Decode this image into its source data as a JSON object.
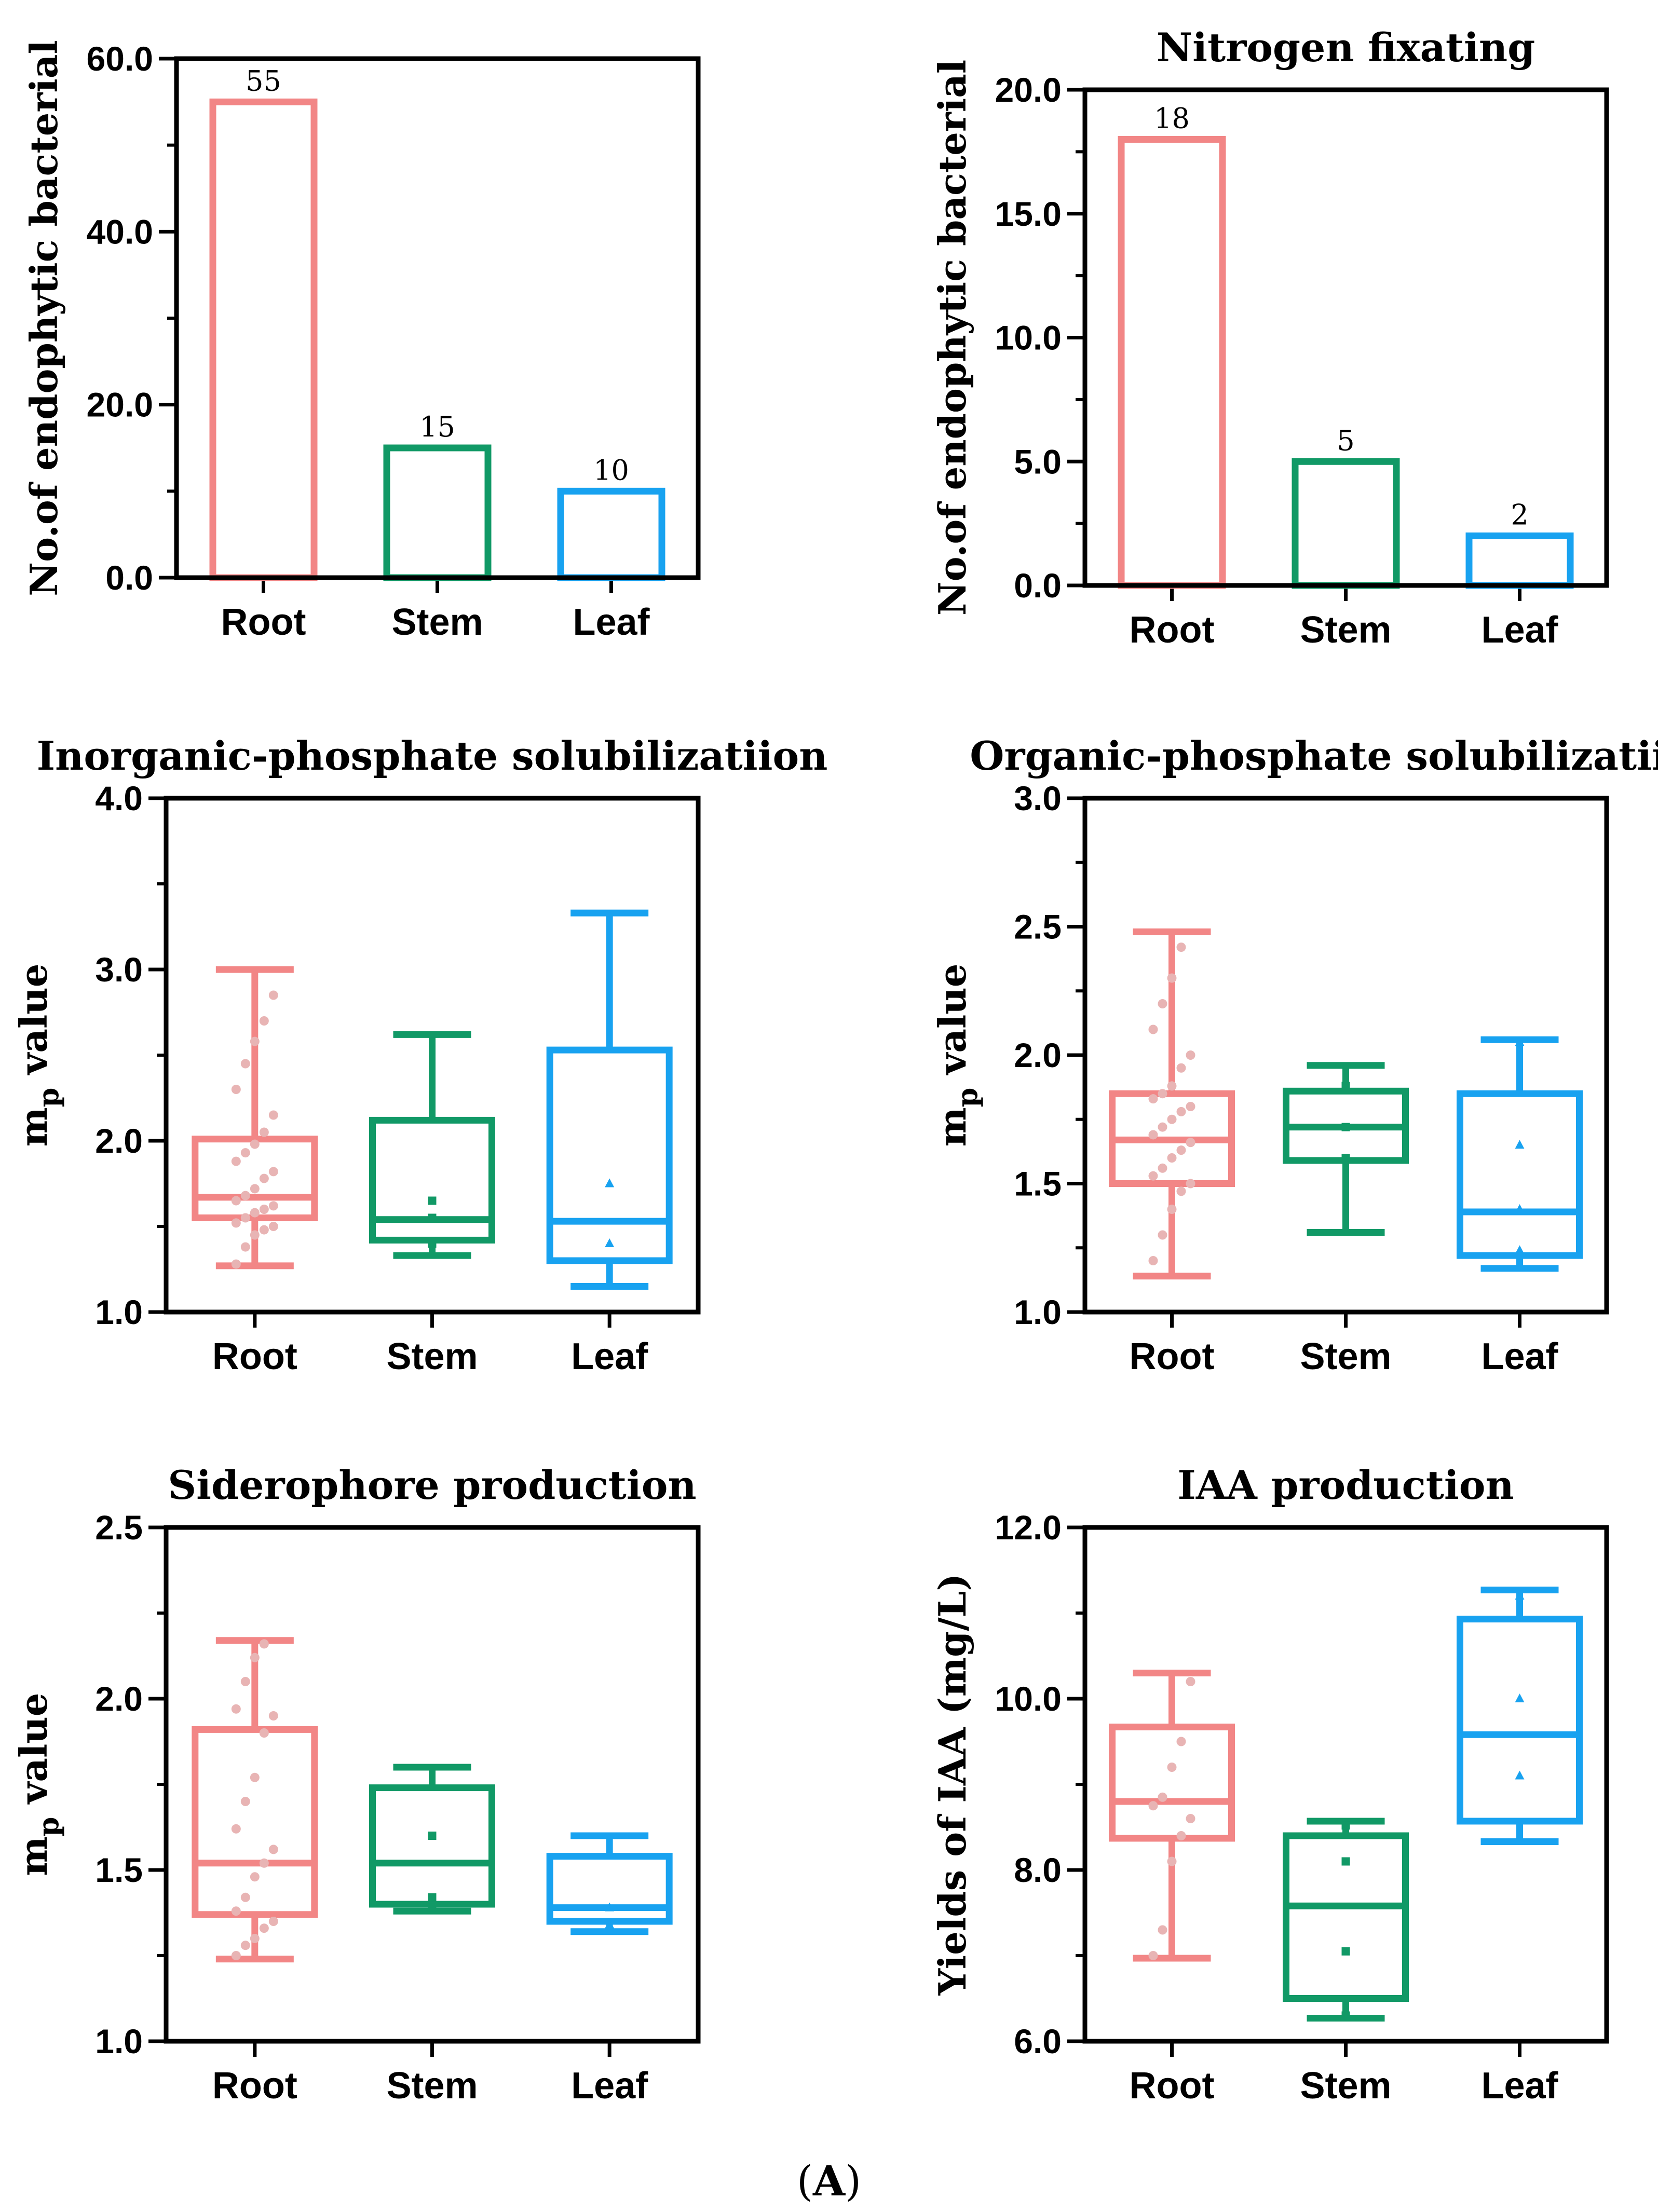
{
  "figure_label_open": "(",
  "figure_label": "A",
  "figure_label_close": ")",
  "colors": {
    "root": "#f28686",
    "stem": "#119966",
    "leaf": "#18a2f0",
    "root_dots": "#e8b4b4"
  },
  "chart_data": [
    {
      "type": "bar",
      "title": "",
      "ylabel": "No.of endophytic bacterial",
      "categories": [
        "Root",
        "Stem",
        "Leaf"
      ],
      "values": [
        55,
        15,
        10
      ],
      "data_labels": [
        "55",
        "15",
        "10"
      ],
      "ylim": [
        0,
        60
      ],
      "yticks": [
        0,
        20,
        40,
        60
      ],
      "ytick_labels": [
        "0.0",
        "20.0",
        "40.0",
        "60.0"
      ],
      "minor_step": 10
    },
    {
      "type": "bar",
      "title": "Nitrogen fixating",
      "ylabel": "No.of endophytic bacterial",
      "categories": [
        "Root",
        "Stem",
        "Leaf"
      ],
      "values": [
        18,
        5,
        2
      ],
      "data_labels": [
        "18",
        "5",
        "2"
      ],
      "ylim": [
        0,
        20
      ],
      "yticks": [
        0,
        5,
        10,
        15,
        20
      ],
      "ytick_labels": [
        "0.0",
        "5.0",
        "10.0",
        "15.0",
        "20.0"
      ],
      "minor_step": 2.5
    },
    {
      "type": "box",
      "title": "Inorganic-phosphate solubilizatiion",
      "ylabel": "m",
      "ylabel_sub": "p",
      "ylabel_rest": " value",
      "categories": [
        "Root",
        "Stem",
        "Leaf"
      ],
      "ylim": [
        1,
        4
      ],
      "yticks": [
        1,
        2,
        3,
        4
      ],
      "ytick_labels": [
        "1.0",
        "2.0",
        "3.0",
        "4.0"
      ],
      "minor_step": 0.5,
      "boxes": [
        {
          "min": 1.27,
          "q1": 1.55,
          "median": 1.67,
          "q3": 2.01,
          "max": 3.0,
          "points": [
            1.28,
            1.38,
            1.45,
            1.48,
            1.5,
            1.52,
            1.55,
            1.58,
            1.6,
            1.62,
            1.65,
            1.68,
            1.72,
            1.78,
            1.82,
            1.88,
            1.93,
            1.98,
            2.05,
            2.15,
            2.3,
            2.45,
            2.58,
            2.7,
            2.85
          ]
        },
        {
          "min": 1.33,
          "q1": 1.42,
          "median": 1.54,
          "q3": 2.12,
          "max": 2.62,
          "points": [
            1.4,
            1.55,
            1.65
          ]
        },
        {
          "min": 1.15,
          "q1": 1.3,
          "median": 1.53,
          "q3": 2.53,
          "max": 3.33,
          "points": [
            1.4,
            1.75
          ]
        }
      ]
    },
    {
      "type": "box",
      "title": "Organic-phosphate solubilizatiion",
      "ylabel": "m",
      "ylabel_sub": "p",
      "ylabel_rest": " value",
      "categories": [
        "Root",
        "Stem",
        "Leaf"
      ],
      "ylim": [
        1,
        3
      ],
      "yticks": [
        1,
        1.5,
        2,
        2.5,
        3
      ],
      "ytick_labels": [
        "1.0",
        "1.5",
        "2.0",
        "2.5",
        "3.0"
      ],
      "minor_step": 0.25,
      "boxes": [
        {
          "min": 1.14,
          "q1": 1.5,
          "median": 1.67,
          "q3": 1.85,
          "max": 2.48,
          "points": [
            1.2,
            1.3,
            1.4,
            1.47,
            1.5,
            1.53,
            1.56,
            1.6,
            1.63,
            1.66,
            1.69,
            1.72,
            1.75,
            1.78,
            1.8,
            1.83,
            1.85,
            1.88,
            1.95,
            2.0,
            2.1,
            2.2,
            2.3,
            2.42
          ]
        },
        {
          "min": 1.31,
          "q1": 1.59,
          "median": 1.72,
          "q3": 1.86,
          "max": 1.96,
          "points": [
            1.6,
            1.72,
            1.88
          ]
        },
        {
          "min": 1.17,
          "q1": 1.22,
          "median": 1.39,
          "q3": 1.85,
          "max": 2.06,
          "points": [
            1.24,
            1.4,
            1.65,
            2.05
          ]
        }
      ]
    },
    {
      "type": "box",
      "title": "Siderophore production",
      "ylabel": "m",
      "ylabel_sub": "p",
      "ylabel_rest": " value",
      "categories": [
        "Root",
        "Stem",
        "Leaf"
      ],
      "ylim": [
        1,
        2.5
      ],
      "yticks": [
        1,
        1.5,
        2,
        2.5
      ],
      "ytick_labels": [
        "1.0",
        "1.5",
        "2.0",
        "2.5"
      ],
      "minor_step": 0.25,
      "boxes": [
        {
          "min": 1.24,
          "q1": 1.37,
          "median": 1.52,
          "q3": 1.91,
          "max": 2.17,
          "points": [
            1.25,
            1.28,
            1.3,
            1.33,
            1.35,
            1.38,
            1.42,
            1.48,
            1.52,
            1.56,
            1.62,
            1.7,
            1.77,
            1.9,
            1.95,
            1.97,
            2.05,
            2.12,
            2.16
          ]
        },
        {
          "min": 1.38,
          "q1": 1.4,
          "median": 1.52,
          "q3": 1.74,
          "max": 1.8,
          "points": [
            1.39,
            1.42,
            1.6
          ]
        },
        {
          "min": 1.32,
          "q1": 1.35,
          "median": 1.39,
          "q3": 1.54,
          "max": 1.6,
          "points": [
            1.34,
            1.39
          ]
        }
      ]
    },
    {
      "type": "box",
      "title": "IAA production",
      "ylabel": "Yields of IAA (mg/L)",
      "categories": [
        "Root",
        "Stem",
        "Leaf"
      ],
      "ylim": [
        6,
        12
      ],
      "yticks": [
        6,
        8,
        10,
        12
      ],
      "ytick_labels": [
        "6.0",
        "8.0",
        "10.0",
        "12.0"
      ],
      "minor_step": 1,
      "boxes": [
        {
          "min": 6.97,
          "q1": 8.37,
          "median": 8.8,
          "q3": 9.67,
          "max": 10.3,
          "points": [
            7.0,
            7.3,
            8.1,
            8.4,
            8.6,
            8.75,
            8.85,
            9.2,
            9.5,
            10.2
          ]
        },
        {
          "min": 6.27,
          "q1": 6.5,
          "median": 7.58,
          "q3": 8.4,
          "max": 8.57,
          "points": [
            6.3,
            7.05,
            8.1,
            8.52
          ]
        },
        {
          "min": 8.33,
          "q1": 8.57,
          "median": 9.58,
          "q3": 10.93,
          "max": 11.27,
          "points": [
            8.35,
            9.1,
            10.0,
            11.2
          ]
        }
      ]
    }
  ]
}
